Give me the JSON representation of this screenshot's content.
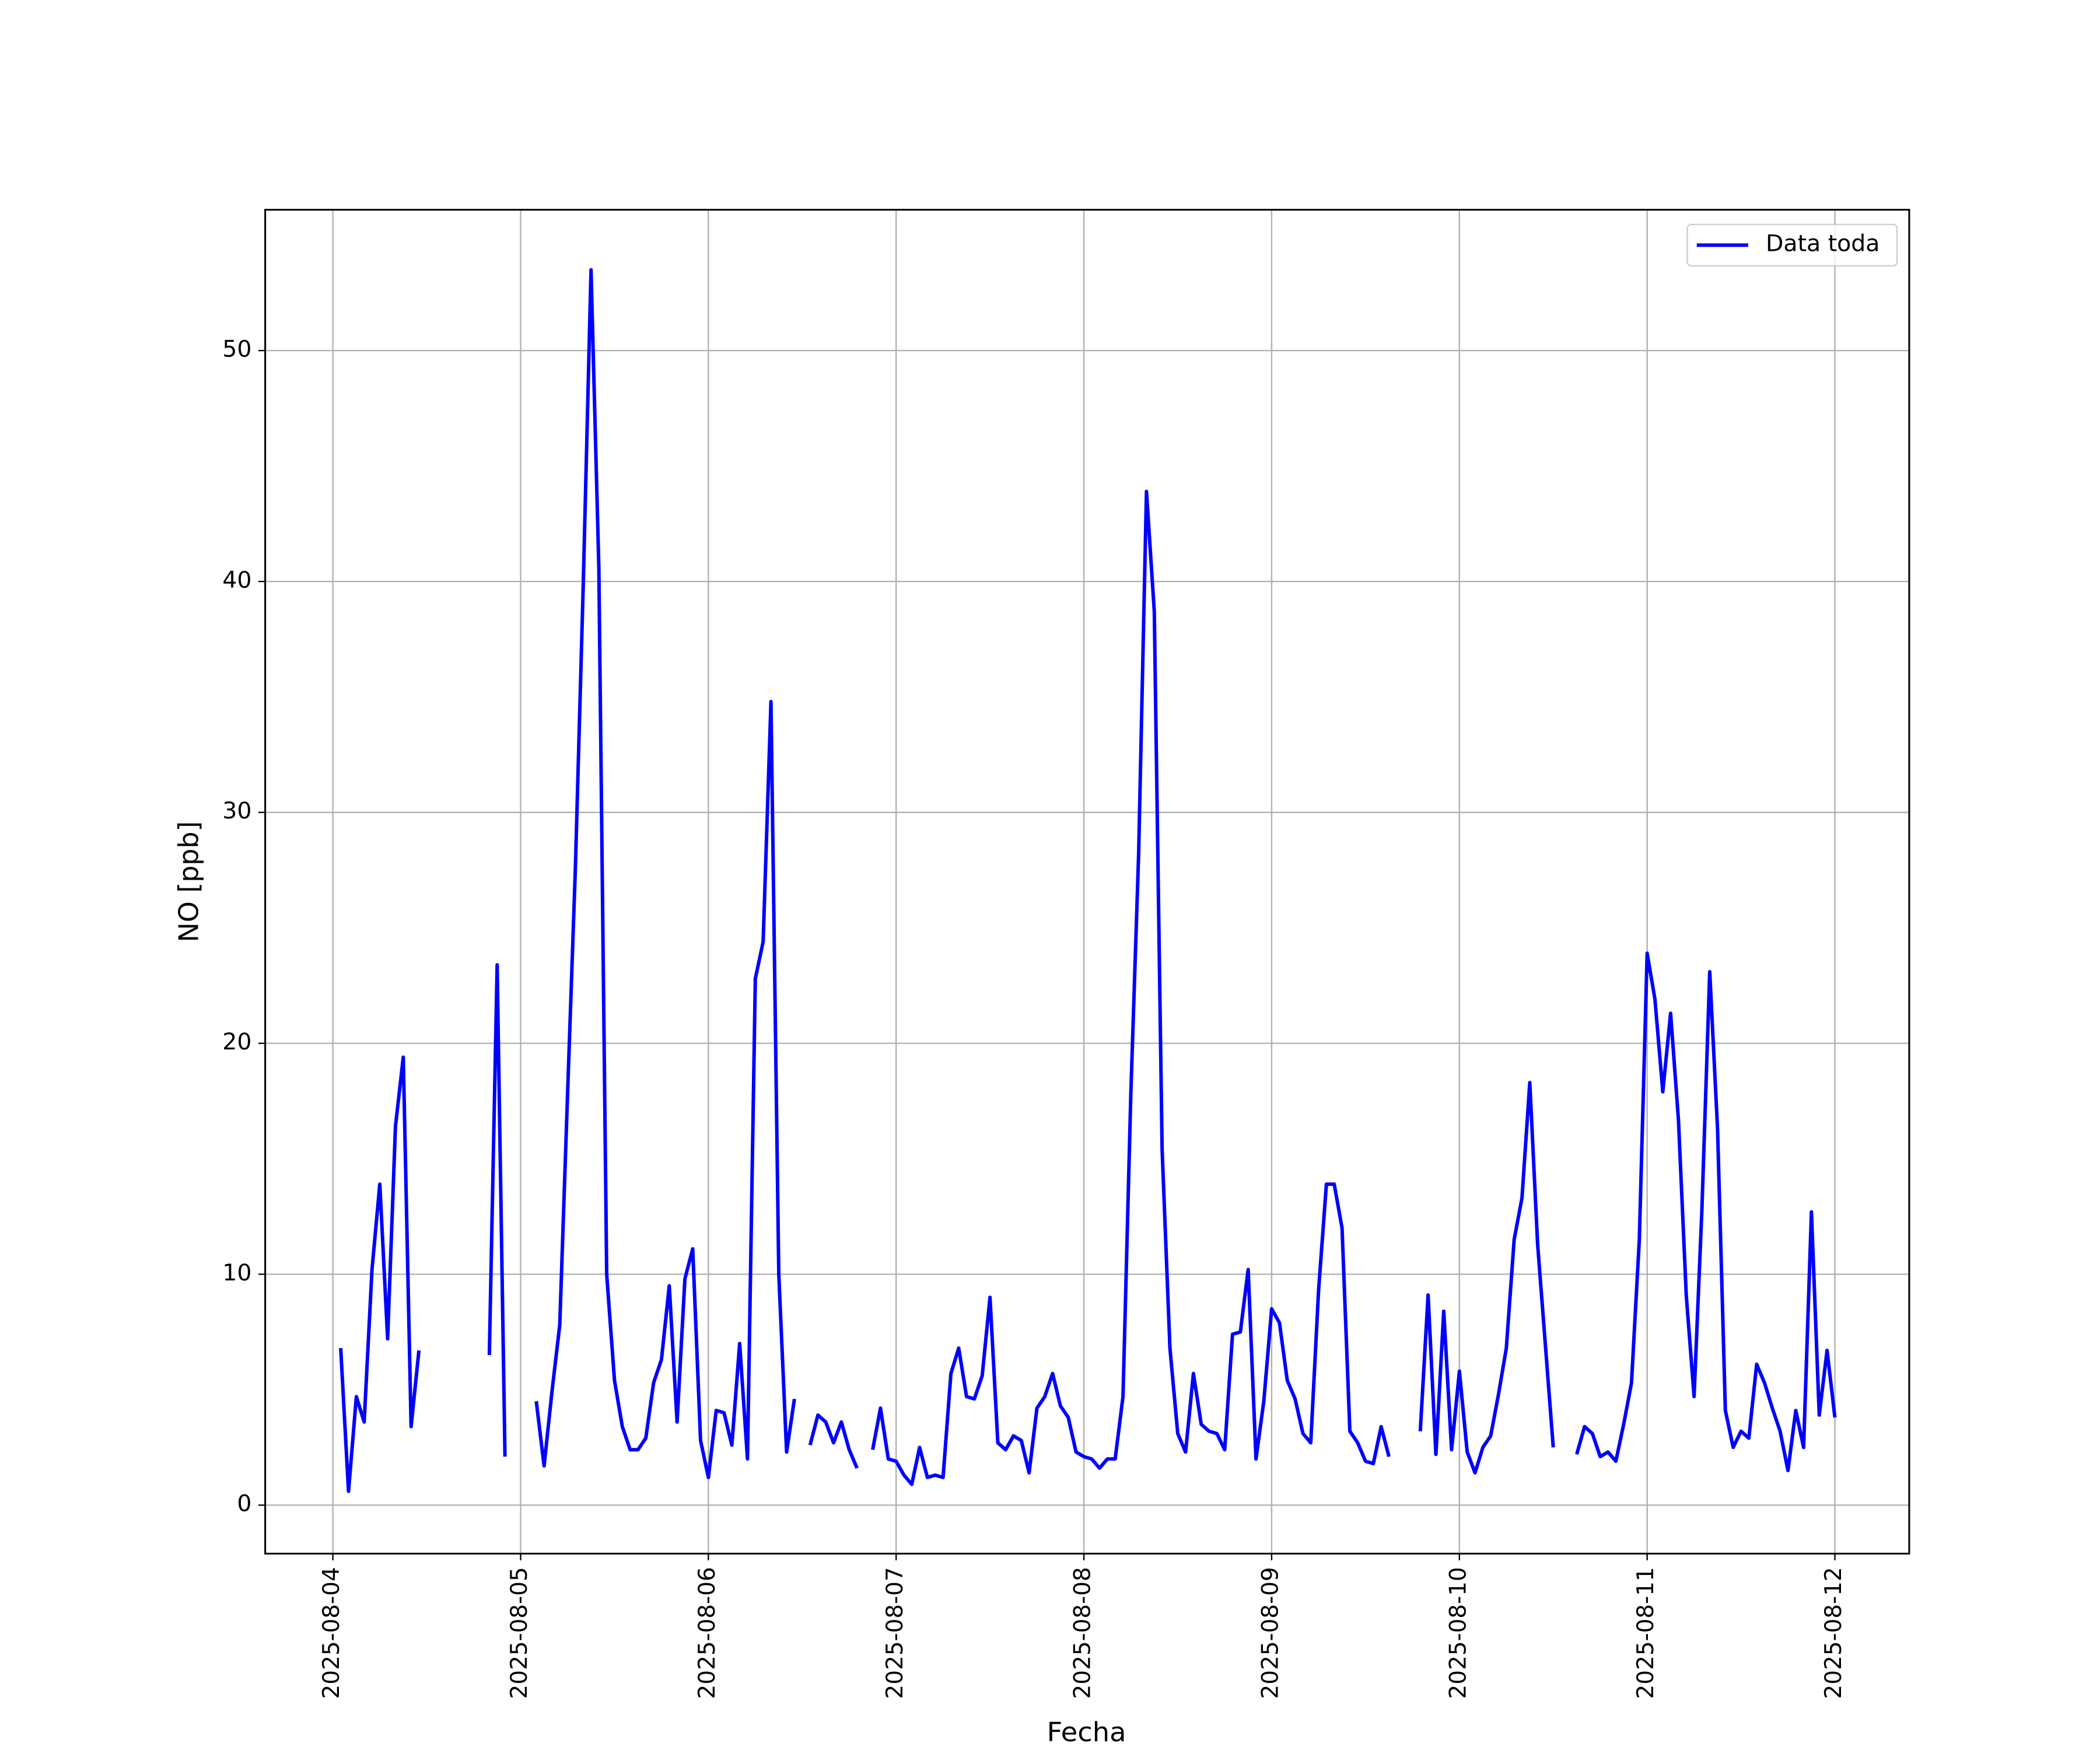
{
  "chart_data": {
    "type": "line",
    "xlabel": "Fecha",
    "ylabel": "NO [ppb]",
    "x": [
      "2025-08-04T01:00",
      "2025-08-04T02:00",
      "2025-08-04T03:00",
      "2025-08-04T04:00",
      "2025-08-04T05:00",
      "2025-08-04T06:00",
      "2025-08-04T07:00",
      "2025-08-04T08:00",
      "2025-08-04T09:00",
      "2025-08-04T10:00",
      "2025-08-04T11:00",
      "2025-08-04T12:00",
      "2025-08-04T13:00",
      "2025-08-04T14:00",
      "2025-08-04T15:00",
      "2025-08-04T16:00",
      "2025-08-04T17:00",
      "2025-08-04T18:00",
      "2025-08-04T19:00",
      "2025-08-04T20:00",
      "2025-08-04T21:00",
      "2025-08-04T22:00",
      "2025-08-04T23:00",
      "2025-08-05T00:00",
      "2025-08-05T01:00",
      "2025-08-05T02:00",
      "2025-08-05T03:00",
      "2025-08-05T04:00",
      "2025-08-05T05:00",
      "2025-08-05T06:00",
      "2025-08-05T07:00",
      "2025-08-05T08:00",
      "2025-08-05T09:00",
      "2025-08-05T10:00",
      "2025-08-05T11:00",
      "2025-08-05T12:00",
      "2025-08-05T13:00",
      "2025-08-05T14:00",
      "2025-08-05T15:00",
      "2025-08-05T16:00",
      "2025-08-05T17:00",
      "2025-08-05T18:00",
      "2025-08-05T19:00",
      "2025-08-05T20:00",
      "2025-08-05T21:00",
      "2025-08-05T22:00",
      "2025-08-05T23:00",
      "2025-08-06T00:00",
      "2025-08-06T01:00",
      "2025-08-06T02:00",
      "2025-08-06T03:00",
      "2025-08-06T04:00",
      "2025-08-06T05:00",
      "2025-08-06T06:00",
      "2025-08-06T07:00",
      "2025-08-06T08:00",
      "2025-08-06T09:00",
      "2025-08-06T10:00",
      "2025-08-06T11:00",
      "2025-08-06T12:00",
      "2025-08-06T13:00",
      "2025-08-06T14:00",
      "2025-08-06T15:00",
      "2025-08-06T16:00",
      "2025-08-06T17:00",
      "2025-08-06T18:00",
      "2025-08-06T19:00",
      "2025-08-06T20:00",
      "2025-08-06T21:00",
      "2025-08-06T22:00",
      "2025-08-06T23:00",
      "2025-08-07T00:00",
      "2025-08-07T01:00",
      "2025-08-07T02:00",
      "2025-08-07T03:00",
      "2025-08-07T04:00",
      "2025-08-07T05:00",
      "2025-08-07T06:00",
      "2025-08-07T07:00",
      "2025-08-07T08:00",
      "2025-08-07T09:00",
      "2025-08-07T10:00",
      "2025-08-07T11:00",
      "2025-08-07T12:00",
      "2025-08-07T13:00",
      "2025-08-07T14:00",
      "2025-08-07T15:00",
      "2025-08-07T16:00",
      "2025-08-07T17:00",
      "2025-08-07T18:00",
      "2025-08-07T19:00",
      "2025-08-07T20:00",
      "2025-08-07T21:00",
      "2025-08-07T22:00",
      "2025-08-07T23:00",
      "2025-08-08T00:00",
      "2025-08-08T01:00",
      "2025-08-08T02:00",
      "2025-08-08T03:00",
      "2025-08-08T04:00",
      "2025-08-08T05:00",
      "2025-08-08T06:00",
      "2025-08-08T07:00",
      "2025-08-08T08:00",
      "2025-08-08T09:00",
      "2025-08-08T10:00",
      "2025-08-08T11:00",
      "2025-08-08T12:00",
      "2025-08-08T13:00",
      "2025-08-08T14:00",
      "2025-08-08T15:00",
      "2025-08-08T16:00",
      "2025-08-08T17:00",
      "2025-08-08T18:00",
      "2025-08-08T19:00",
      "2025-08-08T20:00",
      "2025-08-08T21:00",
      "2025-08-08T22:00",
      "2025-08-08T23:00",
      "2025-08-09T00:00",
      "2025-08-09T01:00",
      "2025-08-09T02:00",
      "2025-08-09T03:00",
      "2025-08-09T04:00",
      "2025-08-09T05:00",
      "2025-08-09T06:00",
      "2025-08-09T07:00",
      "2025-08-09T08:00",
      "2025-08-09T09:00",
      "2025-08-09T10:00",
      "2025-08-09T11:00",
      "2025-08-09T12:00",
      "2025-08-09T13:00",
      "2025-08-09T14:00",
      "2025-08-09T15:00",
      "2025-08-09T16:00",
      "2025-08-09T17:00",
      "2025-08-09T18:00",
      "2025-08-09T19:00",
      "2025-08-09T20:00",
      "2025-08-09T21:00",
      "2025-08-09T22:00",
      "2025-08-09T23:00",
      "2025-08-10T00:00",
      "2025-08-10T01:00",
      "2025-08-10T02:00",
      "2025-08-10T03:00",
      "2025-08-10T04:00",
      "2025-08-10T05:00",
      "2025-08-10T06:00",
      "2025-08-10T07:00",
      "2025-08-10T08:00",
      "2025-08-10T09:00",
      "2025-08-10T10:00",
      "2025-08-10T11:00",
      "2025-08-10T12:00",
      "2025-08-10T13:00",
      "2025-08-10T14:00",
      "2025-08-10T15:00",
      "2025-08-10T16:00",
      "2025-08-10T17:00",
      "2025-08-10T18:00",
      "2025-08-10T19:00",
      "2025-08-10T20:00",
      "2025-08-10T21:00",
      "2025-08-10T22:00",
      "2025-08-10T23:00",
      "2025-08-11T00:00",
      "2025-08-11T01:00",
      "2025-08-11T02:00",
      "2025-08-11T03:00",
      "2025-08-11T04:00",
      "2025-08-11T05:00",
      "2025-08-11T06:00",
      "2025-08-11T07:00",
      "2025-08-11T08:00",
      "2025-08-11T09:00",
      "2025-08-11T10:00",
      "2025-08-11T11:00",
      "2025-08-11T12:00",
      "2025-08-11T13:00",
      "2025-08-11T14:00",
      "2025-08-11T15:00",
      "2025-08-11T16:00",
      "2025-08-11T17:00",
      "2025-08-11T18:00",
      "2025-08-11T19:00",
      "2025-08-11T20:00",
      "2025-08-11T21:00",
      "2025-08-11T22:00",
      "2025-08-11T23:00",
      "2025-08-12T00:00"
    ],
    "series": [
      {
        "name": "Data toda",
        "color": "#0000ff",
        "values": [
          6.8,
          0.6,
          4.7,
          3.6,
          10.2,
          13.9,
          7.2,
          16.4,
          19.4,
          3.4,
          6.7,
          null,
          null,
          null,
          null,
          null,
          null,
          null,
          null,
          6.5,
          23.4,
          2.1,
          null,
          null,
          null,
          4.5,
          1.7,
          4.9,
          7.8,
          17.8,
          27.6,
          39.8,
          53.5,
          40.6,
          10,
          5.4,
          3.4,
          2.4,
          2.4,
          2.9,
          5.3,
          6.3,
          9.5,
          3.6,
          9.8,
          11.1,
          2.8,
          1.2,
          4.1,
          4.0,
          2.6,
          7.0,
          2.0,
          22.8,
          24.4,
          34.8,
          10,
          2.3,
          4.6,
          null,
          2.6,
          3.9,
          3.6,
          2.7,
          3.6,
          2.4,
          1.6,
          null,
          2.4,
          4.2,
          2.0,
          1.9,
          1.3,
          0.9,
          2.5,
          1.2,
          1.3,
          1.2,
          5.7,
          6.8,
          4.7,
          4.6,
          5.6,
          9.0,
          2.7,
          2.4,
          3.0,
          2.8,
          1.4,
          4.2,
          4.7,
          5.7,
          4.3,
          3.8,
          2.3,
          2.1,
          2.0,
          1.6,
          2.0,
          2.0,
          4.7,
          17.8,
          28.2,
          43.9,
          38.7,
          15.4,
          6.8,
          3.1,
          2.3,
          5.7,
          3.5,
          3.2,
          3.1,
          2.4,
          7.4,
          7.5,
          10.2,
          2.0,
          4.5,
          8.5,
          7.9,
          5.4,
          4.6,
          3.1,
          2.7,
          9.3,
          13.9,
          13.9,
          12.0,
          3.2,
          2.7,
          1.9,
          1.8,
          3.4,
          2.1,
          null,
          null,
          null,
          3.2,
          9.1,
          2.2,
          8.4,
          2.4,
          5.8,
          2.3,
          1.4,
          2.5,
          3.0,
          4.8,
          6.8,
          11.5,
          13.3,
          18.3,
          11.3,
          6.9,
          2.5,
          null,
          null,
          2.2,
          3.4,
          3.1,
          2.1,
          2.3,
          1.9,
          3.5,
          5.3,
          11.5,
          23.9,
          21.9,
          17.9,
          21.3,
          16.7,
          9.1,
          4.7,
          12.8,
          23.1,
          16.3,
          4.1,
          2.5,
          3.2,
          2.9,
          6.1,
          5.3,
          4.2,
          3.2,
          1.5,
          4.1,
          2.5,
          12.7,
          3.9,
          6.7,
          3.8
        ]
      }
    ],
    "xlim": [
      "2025-08-03T15:21",
      "2025-08-12T09:30"
    ],
    "xticks": [
      "2025-08-04",
      "2025-08-05",
      "2025-08-06",
      "2025-08-07",
      "2025-08-08",
      "2025-08-09",
      "2025-08-10",
      "2025-08-11",
      "2025-08-12"
    ],
    "ylim": [
      -2.1,
      56.1
    ],
    "yticks": [
      0,
      10,
      20,
      30,
      40,
      50
    ],
    "grid": true,
    "legend": "upper right"
  }
}
